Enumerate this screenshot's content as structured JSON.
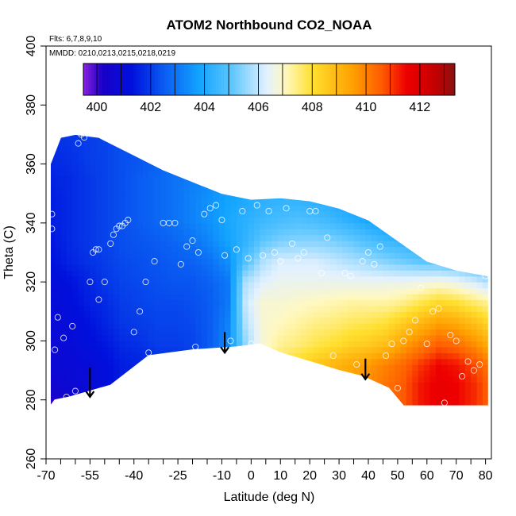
{
  "chart_data": {
    "type": "heatmap",
    "title": "ATOM2 Northbound CO2_NOAA",
    "subtitle_flights": "Flts: 6,7,8,9,10",
    "subtitle_dates": "MMDD: 0210,0213,0215,0218,0219",
    "xlabel": "Latitude (deg N)",
    "ylabel": "Theta (C)",
    "xlim": [
      -70,
      82
    ],
    "ylim": [
      260,
      400
    ],
    "x_ticks_labeled": [
      -70,
      -55,
      -40,
      -25,
      -10,
      0,
      10,
      20,
      30,
      40,
      50,
      60,
      70,
      80
    ],
    "x_tick_labels": [
      "-70",
      "-55",
      "-40",
      "-25",
      "-10",
      "0",
      "10",
      "20",
      "30",
      "40",
      "50",
      "60",
      "70",
      "80"
    ],
    "x_ticks_minor": [
      -65,
      -60,
      -50,
      -45,
      -35,
      -30,
      -20,
      -15,
      -5,
      5,
      15,
      25,
      35,
      45,
      55,
      65,
      75
    ],
    "y_ticks": [
      260,
      280,
      300,
      320,
      340,
      360,
      380,
      400
    ],
    "y_tick_labels": [
      "260",
      "280",
      "300",
      "320",
      "340",
      "360",
      "380",
      "400"
    ],
    "colorbar": {
      "range": [
        399.5,
        413.3
      ],
      "ticks": [
        400,
        402,
        404,
        406,
        408,
        410,
        412
      ],
      "tick_labels": [
        "400",
        "402",
        "404",
        "406",
        "408",
        "410",
        "412"
      ],
      "stops": [
        {
          "v": 399.5,
          "c": "#8b22e0"
        },
        {
          "v": 400.2,
          "c": "#1a00c8"
        },
        {
          "v": 401.3,
          "c": "#0010dd"
        },
        {
          "v": 402.5,
          "c": "#0a5cf2"
        },
        {
          "v": 403.8,
          "c": "#12a4ff"
        },
        {
          "v": 405.0,
          "c": "#5cc6ff"
        },
        {
          "v": 406.3,
          "c": "#e2f1ff"
        },
        {
          "v": 407.0,
          "c": "#fff8c0"
        },
        {
          "v": 408.0,
          "c": "#ffe030"
        },
        {
          "v": 409.5,
          "c": "#ffa000"
        },
        {
          "v": 410.6,
          "c": "#ff5a00"
        },
        {
          "v": 411.5,
          "c": "#ee0000"
        },
        {
          "v": 412.5,
          "c": "#c80000"
        },
        {
          "v": 413.3,
          "c": "#8b1010"
        }
      ]
    },
    "surface_boundary": [
      [
        -68.5,
        278
      ],
      [
        -67,
        280
      ],
      [
        -62,
        281
      ],
      [
        -48,
        285
      ],
      [
        -35,
        295
      ],
      [
        -20,
        297
      ],
      [
        -5,
        298
      ],
      [
        3,
        299
      ],
      [
        10,
        296
      ],
      [
        20,
        293
      ],
      [
        30,
        290
      ],
      [
        38,
        288
      ],
      [
        47,
        284
      ],
      [
        52,
        278
      ],
      [
        81,
        278
      ]
    ],
    "top_boundary": [
      [
        -68.5,
        360
      ],
      [
        -65,
        369
      ],
      [
        -60,
        370
      ],
      [
        -52,
        369
      ],
      [
        -50,
        368
      ],
      [
        -40,
        363
      ],
      [
        -30,
        358
      ],
      [
        -20,
        354
      ],
      [
        -10,
        350
      ],
      [
        0,
        348
      ],
      [
        10,
        348.5
      ],
      [
        20,
        347.5
      ],
      [
        30,
        345
      ],
      [
        40,
        341
      ],
      [
        50,
        334
      ],
      [
        60,
        327
      ],
      [
        70,
        324
      ],
      [
        81,
        322
      ]
    ],
    "data_grid": {
      "x": [
        -68,
        -62,
        -56,
        -50,
        -44,
        -38,
        -32,
        -26,
        -20,
        -14,
        -8,
        -2,
        4,
        10,
        16,
        22,
        28,
        34,
        40,
        46,
        52,
        58,
        64,
        70,
        76,
        81
      ],
      "y": [
        278,
        285,
        292,
        299,
        306,
        313,
        320,
        327,
        334,
        341,
        348,
        355,
        362,
        369
      ],
      "z": [
        [
          400.0,
          400.5,
          400.8,
          401.3,
          401.5,
          401.6,
          401.8,
          401.8,
          402.0,
          402.6,
          403.5,
          405.5,
          407.0,
          407.8,
          408.2,
          408.6,
          409.0,
          409.4,
          409.8,
          410.2,
          410.6,
          411.3,
          411.6,
          411.5,
          411.1,
          410.5
        ],
        [
          400.6,
          400.8,
          400.9,
          401.2,
          401.5,
          401.6,
          401.8,
          401.8,
          402.0,
          402.6,
          403.5,
          405.5,
          407.0,
          407.8,
          408.2,
          408.6,
          409.0,
          409.4,
          409.8,
          410.2,
          410.6,
          411.3,
          411.6,
          411.5,
          411.1,
          410.5
        ],
        [
          400.8,
          400.9,
          401.0,
          401.2,
          401.5,
          401.6,
          401.8,
          401.8,
          402.0,
          402.6,
          403.5,
          405.5,
          407.0,
          407.8,
          408.2,
          408.6,
          409.0,
          409.3,
          409.6,
          410.0,
          410.4,
          411.0,
          411.5,
          411.3,
          410.8,
          410.2
        ],
        [
          400.8,
          401.0,
          401.2,
          401.4,
          401.7,
          401.8,
          402.0,
          402.0,
          402.1,
          402.5,
          403.3,
          405.5,
          406.8,
          407.3,
          407.5,
          407.8,
          408.0,
          408.3,
          408.5,
          408.8,
          409.5,
          410.0,
          410.5,
          410.3,
          409.8,
          409.2
        ],
        [
          401.0,
          401.1,
          401.3,
          401.6,
          401.9,
          402.0,
          402.1,
          402.1,
          402.2,
          402.5,
          403.2,
          405.8,
          406.8,
          407.0,
          407.2,
          407.4,
          407.5,
          407.7,
          407.8,
          408.0,
          408.5,
          409.0,
          409.5,
          409.3,
          408.8,
          408.3
        ],
        [
          401.0,
          401.2,
          401.5,
          401.7,
          402.0,
          402.1,
          402.2,
          402.2,
          402.3,
          402.5,
          403.0,
          406.0,
          406.8,
          406.8,
          406.9,
          407.0,
          407.1,
          407.2,
          407.2,
          407.2,
          407.4,
          407.8,
          408.2,
          408.0,
          407.6,
          407.3
        ],
        [
          401.1,
          401.3,
          401.6,
          401.9,
          402.1,
          402.2,
          402.3,
          402.4,
          402.4,
          402.6,
          403.0,
          405.8,
          406.3,
          406.5,
          406.5,
          406.5,
          406.5,
          406.5,
          406.5,
          406.5,
          406.5,
          406.6,
          406.7,
          406.5,
          406.2,
          405.8
        ],
        [
          401.3,
          401.6,
          401.8,
          402.0,
          402.2,
          402.3,
          402.4,
          402.5,
          402.6,
          402.9,
          403.4,
          404.8,
          405.8,
          406.2,
          406.2,
          406.2,
          406.0,
          405.8,
          405.6,
          405.4,
          405.2,
          405.0,
          404.9,
          404.8,
          404.6,
          404.4
        ],
        [
          401.4,
          401.7,
          401.9,
          402.1,
          402.3,
          402.4,
          402.5,
          402.7,
          402.9,
          403.3,
          403.8,
          404.3,
          405.0,
          405.3,
          405.4,
          405.4,
          405.3,
          405.1,
          404.8,
          404.5,
          404.3,
          404.1,
          403.9,
          403.8,
          403.6,
          403.4
        ],
        [
          401.5,
          401.7,
          401.9,
          402.1,
          402.3,
          402.5,
          402.7,
          402.9,
          403.2,
          403.5,
          403.9,
          404.2,
          404.5,
          404.7,
          404.8,
          404.7,
          404.5,
          404.2,
          403.9,
          403.6,
          403.4,
          403.2,
          403.0,
          402.9,
          402.8,
          402.7
        ],
        [
          401.5,
          401.7,
          401.9,
          402.1,
          402.3,
          402.5,
          402.7,
          402.9,
          403.2,
          403.5,
          403.8,
          404.0,
          404.2,
          404.3,
          404.3,
          404.2,
          404.0,
          403.8,
          403.5,
          403.3,
          403.1,
          403.0,
          402.9,
          402.8,
          402.7,
          402.6
        ],
        [
          401.6,
          401.7,
          401.9,
          402.1,
          402.3,
          402.5,
          402.7,
          402.9,
          403.1,
          403.3,
          403.5,
          403.7,
          403.8,
          403.8,
          403.7,
          403.6,
          403.5,
          403.3,
          403.1,
          403.0,
          402.9,
          402.8,
          402.7,
          402.6,
          402.6,
          402.5
        ],
        [
          401.7,
          401.8,
          402.0,
          402.1,
          402.3,
          402.4,
          402.6,
          402.8,
          403.0,
          403.2,
          403.3,
          403.4,
          403.5,
          403.5,
          403.4,
          403.3,
          403.2,
          403.1,
          403.0,
          402.9,
          402.8,
          402.7,
          402.6,
          402.6,
          402.5,
          402.5
        ],
        [
          401.8,
          401.9,
          402.0,
          402.1,
          402.3,
          402.4,
          402.6,
          402.7,
          402.9,
          403.0,
          403.1,
          403.2,
          403.2,
          403.2,
          403.1,
          403.0,
          403.0,
          402.9,
          402.8,
          402.8,
          402.7,
          402.6,
          402.6,
          402.5,
          402.5,
          402.5
        ]
      ]
    },
    "sample_points": [
      [
        -68,
        343
      ],
      [
        -68,
        338
      ],
      [
        -67,
        297
      ],
      [
        -66,
        308
      ],
      [
        -66,
        278
      ],
      [
        -64,
        301
      ],
      [
        -63,
        281
      ],
      [
        -61,
        305
      ],
      [
        -60,
        283
      ],
      [
        -59,
        367
      ],
      [
        -58,
        370
      ],
      [
        -57,
        369
      ],
      [
        -55,
        320
      ],
      [
        -54,
        330
      ],
      [
        -53,
        331
      ],
      [
        -52,
        331
      ],
      [
        -52,
        314
      ],
      [
        -50,
        320
      ],
      [
        -48,
        333
      ],
      [
        -47,
        336
      ],
      [
        -46,
        338
      ],
      [
        -45,
        339
      ],
      [
        -44,
        339
      ],
      [
        -43,
        340
      ],
      [
        -42,
        341
      ],
      [
        -40,
        303
      ],
      [
        -38,
        310
      ],
      [
        -36,
        320
      ],
      [
        -35,
        296
      ],
      [
        -33,
        327
      ],
      [
        -30,
        340
      ],
      [
        -28,
        340
      ],
      [
        -26,
        340
      ],
      [
        -24,
        326
      ],
      [
        -22,
        332
      ],
      [
        -20,
        334
      ],
      [
        -19,
        298
      ],
      [
        -18,
        330
      ],
      [
        -16,
        343
      ],
      [
        -14,
        345
      ],
      [
        -12,
        346
      ],
      [
        -10,
        341
      ],
      [
        -9,
        329
      ],
      [
        -7,
        300
      ],
      [
        -5,
        331
      ],
      [
        -3,
        344
      ],
      [
        -1,
        328
      ],
      [
        0,
        299
      ],
      [
        2,
        346
      ],
      [
        4,
        329
      ],
      [
        6,
        344
      ],
      [
        8,
        330
      ],
      [
        10,
        327
      ],
      [
        12,
        345
      ],
      [
        14,
        333
      ],
      [
        16,
        328
      ],
      [
        18,
        330
      ],
      [
        20,
        344
      ],
      [
        22,
        344
      ],
      [
        24,
        323
      ],
      [
        26,
        335
      ],
      [
        28,
        295
      ],
      [
        30,
        346
      ],
      [
        32,
        323
      ],
      [
        34,
        322
      ],
      [
        36,
        292
      ],
      [
        38,
        327
      ],
      [
        40,
        330
      ],
      [
        42,
        326
      ],
      [
        44,
        332
      ],
      [
        46,
        295
      ],
      [
        48,
        299
      ],
      [
        50,
        284
      ],
      [
        52,
        300
      ],
      [
        54,
        303
      ],
      [
        56,
        307
      ],
      [
        58,
        318
      ],
      [
        60,
        299
      ],
      [
        62,
        310
      ],
      [
        64,
        311
      ],
      [
        66,
        279
      ],
      [
        68,
        302
      ],
      [
        70,
        300
      ],
      [
        72,
        288
      ],
      [
        74,
        293
      ],
      [
        76,
        290
      ],
      [
        78,
        292
      ],
      [
        80,
        322
      ]
    ],
    "arrow_markers": [
      {
        "x": -55,
        "y_from": 291,
        "y_to": 281
      },
      {
        "x": -9,
        "y_from": 303,
        "y_to": 296
      },
      {
        "x": 39,
        "y_from": 294,
        "y_to": 287
      }
    ]
  }
}
